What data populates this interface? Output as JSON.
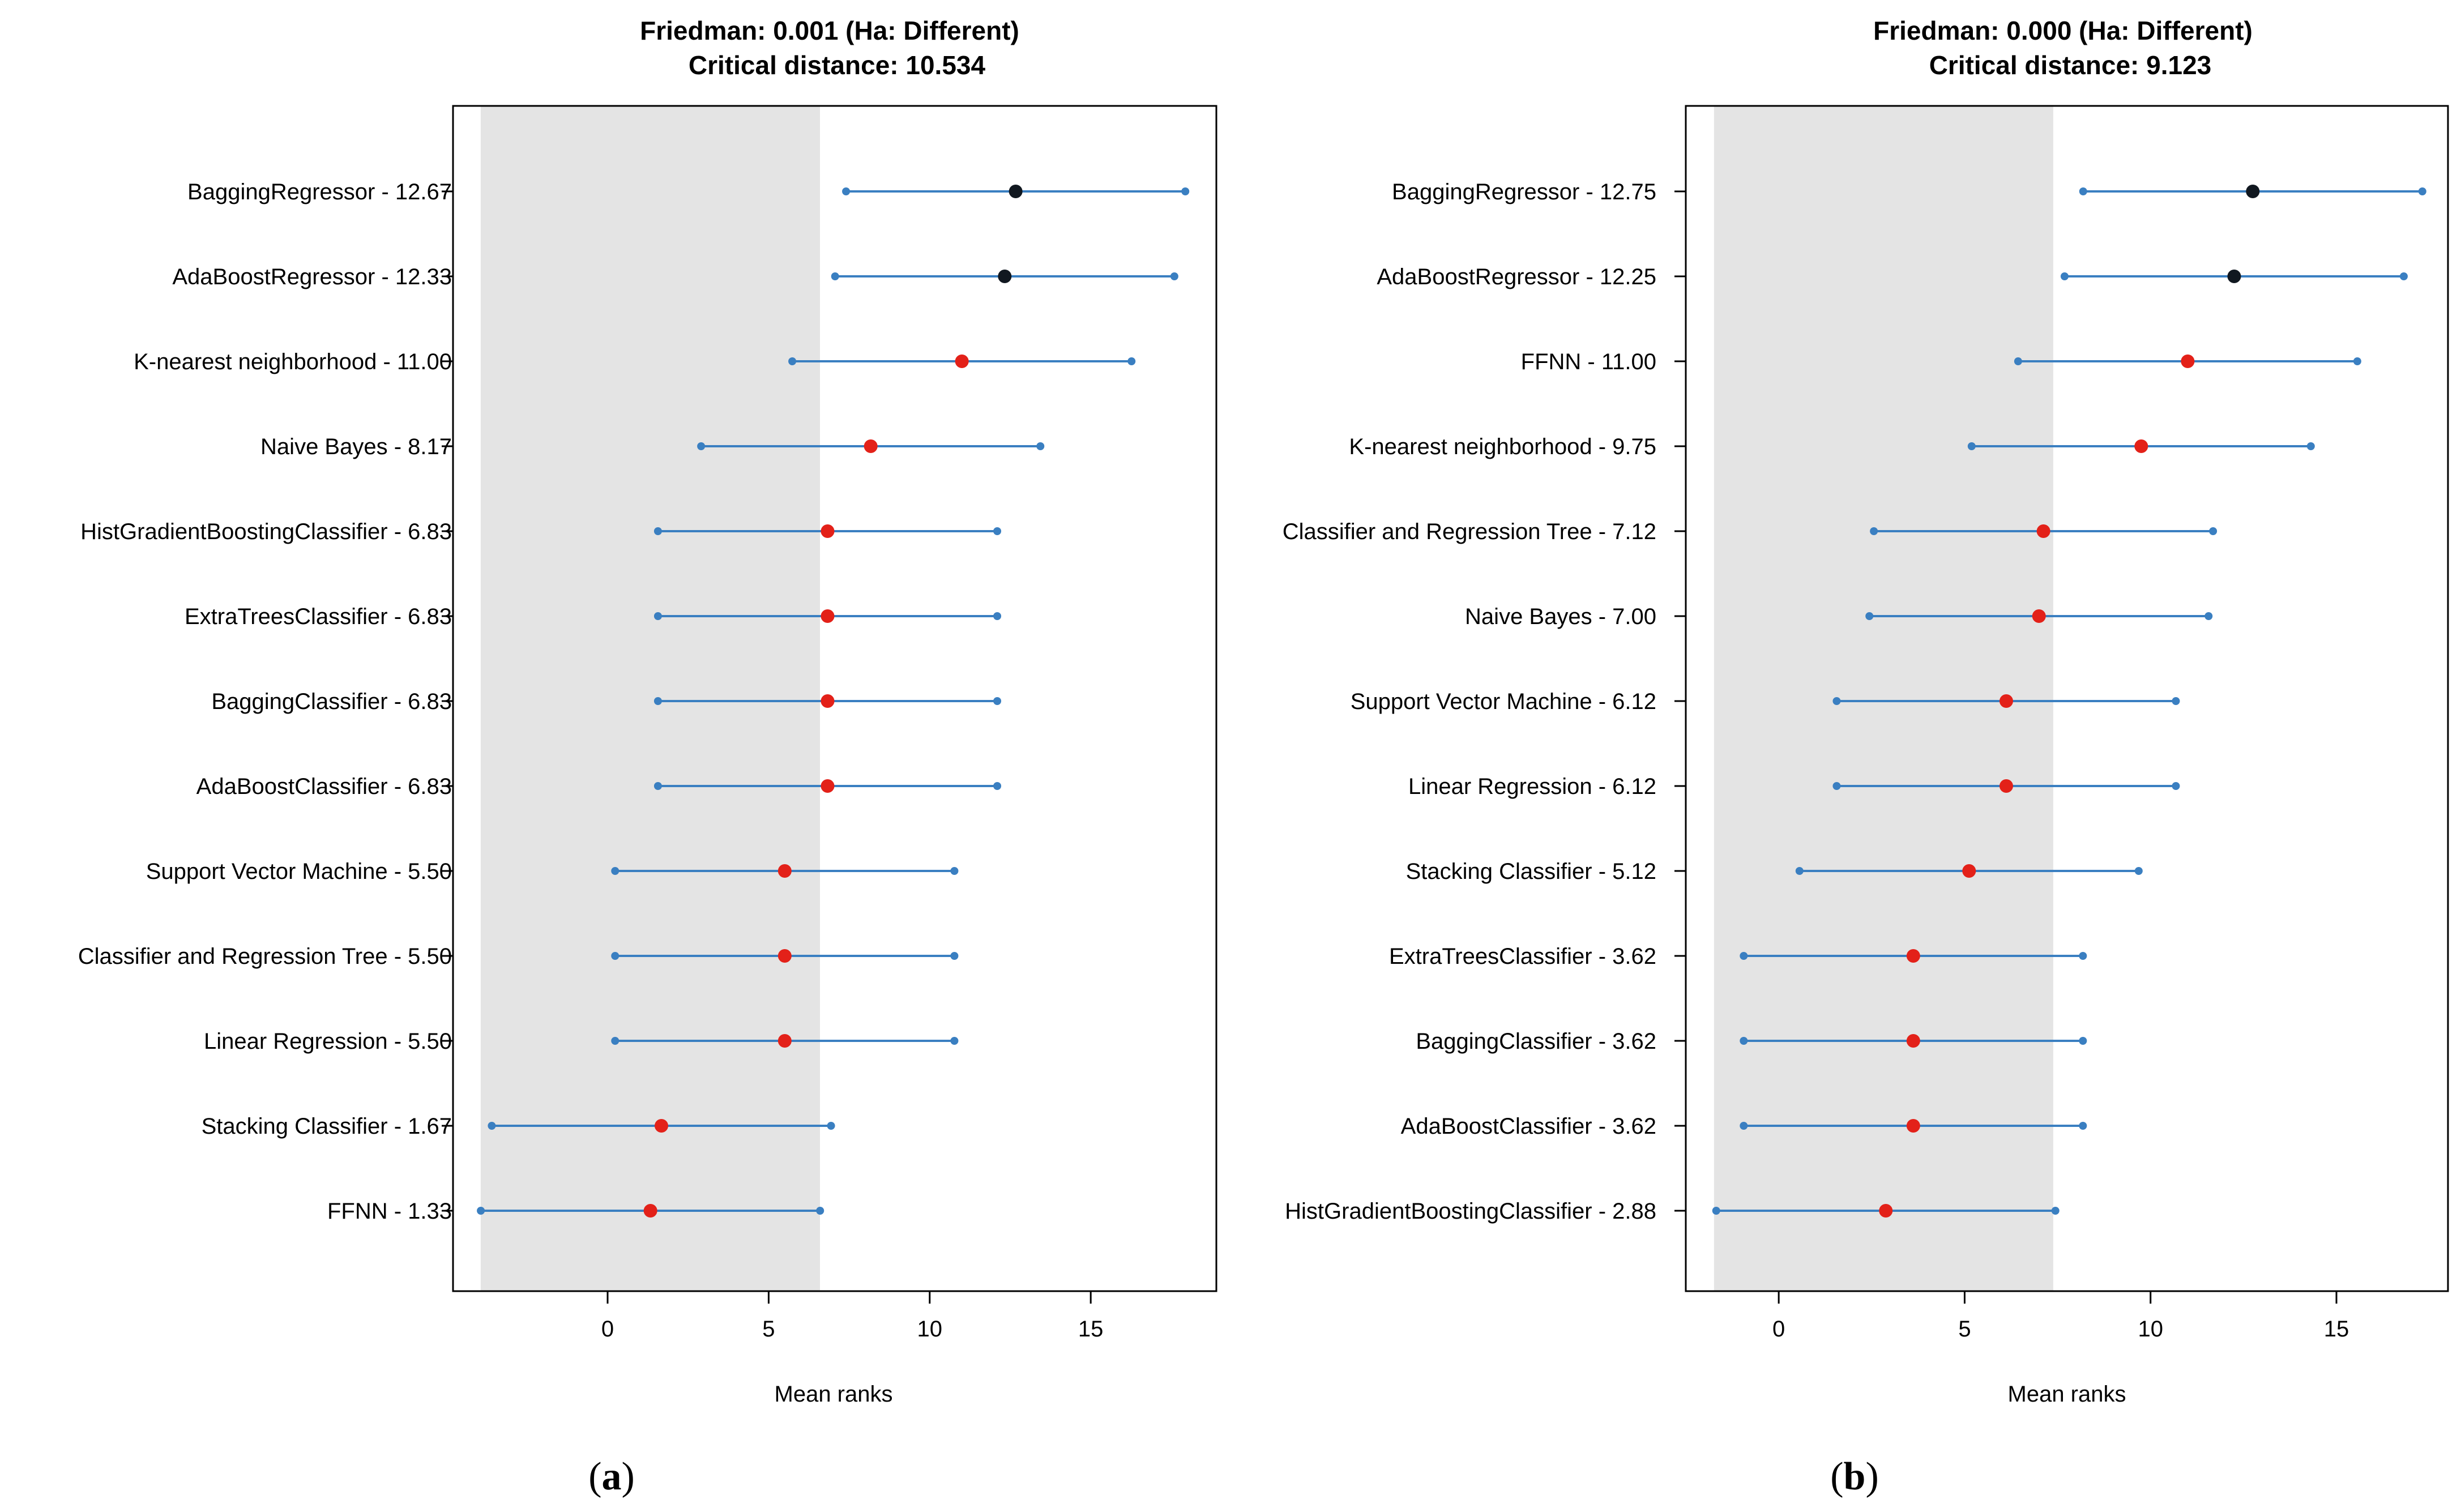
{
  "chart_data": [
    {
      "type": "scatter",
      "caption_letter": "a",
      "title": "Friedman: 0.001 (Ha: Different)",
      "subtitle": "Critical distance: 10.534",
      "xlabel": "Mean ranks",
      "xlim": [
        -4.8,
        18.9
      ],
      "xticks": [
        "0",
        "5",
        "10",
        "15"
      ],
      "xtick_values": [
        0,
        5,
        10,
        15
      ],
      "critical_distance": 10.534,
      "shaded_region": [
        -3.94,
        6.594
      ],
      "colors": {
        "interval": "#3a7fc1",
        "significant_point": "#e32119",
        "best_group_point": "#111820",
        "shade": "#e4e4e4"
      },
      "rows": [
        {
          "label": "BaggingRegressor - 12.67",
          "mean_rank": 12.67,
          "group": "best"
        },
        {
          "label": "AdaBoostRegressor - 12.33",
          "mean_rank": 12.33,
          "group": "best"
        },
        {
          "label": "K-nearest neighborhood - 11.00",
          "mean_rank": 11.0,
          "group": "different"
        },
        {
          "label": "Naive Bayes  - 8.17",
          "mean_rank": 8.17,
          "group": "different"
        },
        {
          "label": "HistGradientBoostingClassifier - 6.83",
          "mean_rank": 6.83,
          "group": "different"
        },
        {
          "label": "ExtraTreesClassifier - 6.83",
          "mean_rank": 6.83,
          "group": "different"
        },
        {
          "label": "BaggingClassifier - 6.83",
          "mean_rank": 6.83,
          "group": "different"
        },
        {
          "label": "AdaBoostClassifier - 6.83",
          "mean_rank": 6.83,
          "group": "different"
        },
        {
          "label": "Support Vector Machine  - 5.50",
          "mean_rank": 5.5,
          "group": "different"
        },
        {
          "label": "Classifier and Regression Tree  - 5.50",
          "mean_rank": 5.5,
          "group": "different"
        },
        {
          "label": "Linear Regression - 5.50",
          "mean_rank": 5.5,
          "group": "different"
        },
        {
          "label": "Stacking Classifier - 1.67",
          "mean_rank": 1.67,
          "group": "different"
        },
        {
          "label": "FFNN - 1.33",
          "mean_rank": 1.33,
          "group": "different"
        }
      ]
    },
    {
      "type": "scatter",
      "caption_letter": "b",
      "title": "Friedman: 0.000 (Ha: Different)",
      "subtitle": "Critical distance: 9.123",
      "xlabel": "Mean ranks",
      "xlim": [
        -2.5,
        18.0
      ],
      "xticks": [
        "0",
        "5",
        "10",
        "15"
      ],
      "xtick_values": [
        0,
        5,
        10,
        15
      ],
      "critical_distance": 9.123,
      "shaded_region": [
        -1.74,
        7.383
      ],
      "colors": {
        "interval": "#3a7fc1",
        "significant_point": "#e32119",
        "best_group_point": "#111820",
        "shade": "#e4e4e4"
      },
      "rows": [
        {
          "label": "BaggingRegressor - 12.75",
          "mean_rank": 12.75,
          "group": "best"
        },
        {
          "label": "AdaBoostRegressor - 12.25",
          "mean_rank": 12.25,
          "group": "best"
        },
        {
          "label": "FFNN - 11.00",
          "mean_rank": 11.0,
          "group": "different"
        },
        {
          "label": "K-nearest neighborhood - 9.75",
          "mean_rank": 9.75,
          "group": "different"
        },
        {
          "label": "Classifier and Regression Tree  - 7.12",
          "mean_rank": 7.12,
          "group": "different"
        },
        {
          "label": "Naive Bayes  - 7.00",
          "mean_rank": 7.0,
          "group": "different"
        },
        {
          "label": "Support Vector Machine  - 6.12",
          "mean_rank": 6.12,
          "group": "different"
        },
        {
          "label": "Linear Regression - 6.12",
          "mean_rank": 6.12,
          "group": "different"
        },
        {
          "label": "Stacking Classifier - 5.12",
          "mean_rank": 5.12,
          "group": "different"
        },
        {
          "label": "ExtraTreesClassifier - 3.62",
          "mean_rank": 3.62,
          "group": "different"
        },
        {
          "label": "BaggingClassifier - 3.62",
          "mean_rank": 3.62,
          "group": "different"
        },
        {
          "label": "AdaBoostClassifier - 3.62",
          "mean_rank": 3.62,
          "group": "different"
        },
        {
          "label": "HistGradientBoostingClassifier - 2.88",
          "mean_rank": 2.88,
          "group": "different"
        }
      ]
    }
  ]
}
